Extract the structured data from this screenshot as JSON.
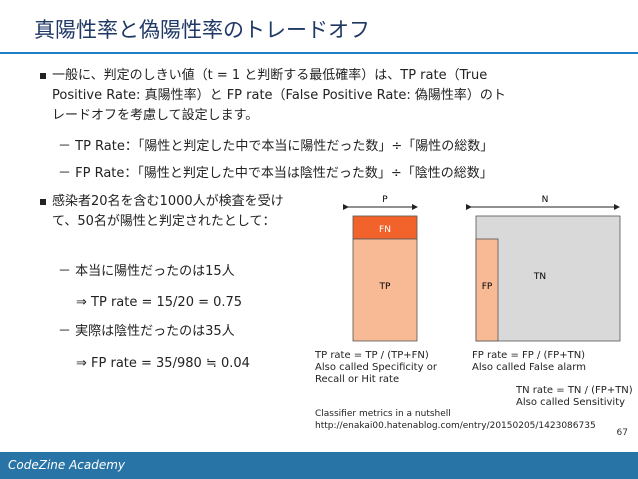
{
  "slide": {
    "title": "真陽性率と偽陽性率のトレードオフ",
    "bullet1": {
      "line1": "一般に、判定のしきい値（t = 1 と判断する最低確率）は、TP rate（True",
      "line2": "Positive Rate: 真陽性率）と FP rate（False Positive Rate: 偽陽性率）のト",
      "line3": "レードオフを考慮して設定します。",
      "sub1": "－ TP Rate：「陽性と判定した中で本当に陽性だった数」÷「陽性の総数」",
      "sub2": "－ FP Rate：「陽性と判定した中で本当は陰性だった数」÷「陰性の総数」"
    },
    "bullet2": {
      "line1": "感染者20名を含む1000人が検査を受け",
      "line2": "て、50名が陽性と判定されたとして：",
      "sub1": "－ 本当に陽性だったのは15人",
      "sub1_result": "⇒  TP rate = 15/20 = 0.75",
      "sub2": "－ 実際は陰性だったのは35人",
      "sub2_result": "⇒  FP rate = 35/980 ≒ 0.04"
    },
    "page_number": "67",
    "footer": "CodeZine Academy"
  },
  "diagram": {
    "label_p": "P",
    "label_n": "N",
    "fn": "FN",
    "tp": "TP",
    "fp": "FP",
    "tn": "TN",
    "tp_rate_1": "TP rate = TP / (TP+FN)",
    "tp_rate_2": "Also called Specificity or",
    "tp_rate_3": "Recall or Hit rate",
    "fp_rate_1": "FP rate = FP / (FP+TN)",
    "fp_rate_2": "Also called False alarm",
    "tn_rate_1": "TN rate = TN / (FP+TN)",
    "tn_rate_2": "Also called Sensitivity",
    "caption_1": "Classifier metrics in a nutshell",
    "caption_2": "http://enakai00.hatenablog.com/entry/20150205/1423086735",
    "colors": {
      "fn": "#f2632c",
      "tp": "#f8b995",
      "fp": "#f8b995",
      "tn": "#d9d9d9"
    }
  }
}
